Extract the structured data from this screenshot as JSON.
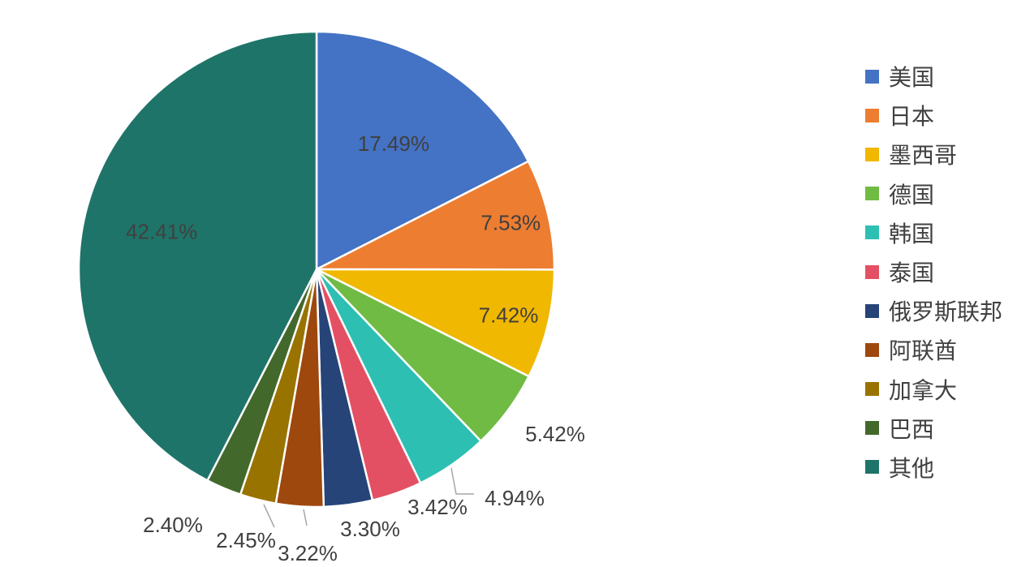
{
  "chart_data": {
    "type": "pie",
    "title": "",
    "legend_position": "right",
    "slices": [
      {
        "name": "美国",
        "value": 17.49,
        "label": "17.49%",
        "color": "#4472C4"
      },
      {
        "name": "日本",
        "value": 7.53,
        "label": "7.53%",
        "color": "#ED7D31"
      },
      {
        "name": "墨西哥",
        "value": 7.42,
        "label": "7.42%",
        "color": "#F0B800"
      },
      {
        "name": "德国",
        "value": 5.42,
        "label": "5.42%",
        "color": "#70BB44"
      },
      {
        "name": "韩国",
        "value": 4.94,
        "label": "4.94%",
        "color": "#2EBFB3"
      },
      {
        "name": "泰国",
        "value": 3.42,
        "label": "3.42%",
        "color": "#E45063"
      },
      {
        "name": "俄罗斯联邦",
        "value": 3.3,
        "label": "3.30%",
        "color": "#264478"
      },
      {
        "name": "阿联酋",
        "value": 3.22,
        "label": "3.22%",
        "color": "#9E480E"
      },
      {
        "name": "加拿大",
        "value": 2.45,
        "label": "2.45%",
        "color": "#997300"
      },
      {
        "name": "巴西",
        "value": 2.4,
        "label": "2.40%",
        "color": "#43682B"
      },
      {
        "name": "其他",
        "value": 42.41,
        "label": "42.41%",
        "color": "#1F7469"
      }
    ]
  }
}
